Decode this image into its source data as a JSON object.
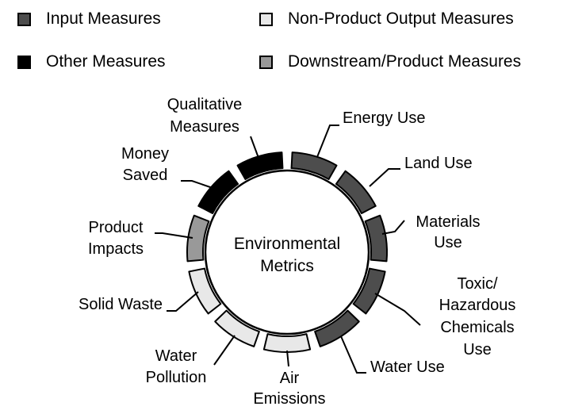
{
  "legend": [
    {
      "label": "Input Measures",
      "color": "#4d4d4d"
    },
    {
      "label": "Non-Product Output Measures",
      "color": "#e8e8e8"
    },
    {
      "label": "Other Measures",
      "color": "#000000"
    },
    {
      "label": "Downstream/Product Measures",
      "color": "#999999"
    }
  ],
  "center": {
    "line1": "Environmental",
    "line2": "Metrics"
  },
  "segments": [
    {
      "label": "Energy Use",
      "category": "input"
    },
    {
      "label": "Land Use",
      "category": "input"
    },
    {
      "label": "Materials Use",
      "category": "input"
    },
    {
      "label": "Toxic/ Hazardous Chemicals Use",
      "category": "input"
    },
    {
      "label": "Water Use",
      "category": "input"
    },
    {
      "label": "Air Emissions",
      "category": "non-product-output"
    },
    {
      "label": "Water Pollution",
      "category": "non-product-output"
    },
    {
      "label": "Solid Waste",
      "category": "non-product-output"
    },
    {
      "label": "Product Impacts",
      "category": "downstream-product"
    },
    {
      "label": "Money Saved",
      "category": "other"
    },
    {
      "label": "Qualitative Measures",
      "category": "other"
    }
  ],
  "category_colors": {
    "input": "#4d4d4d",
    "non-product-output": "#e8e8e8",
    "downstream-product": "#999999",
    "other": "#000000"
  }
}
